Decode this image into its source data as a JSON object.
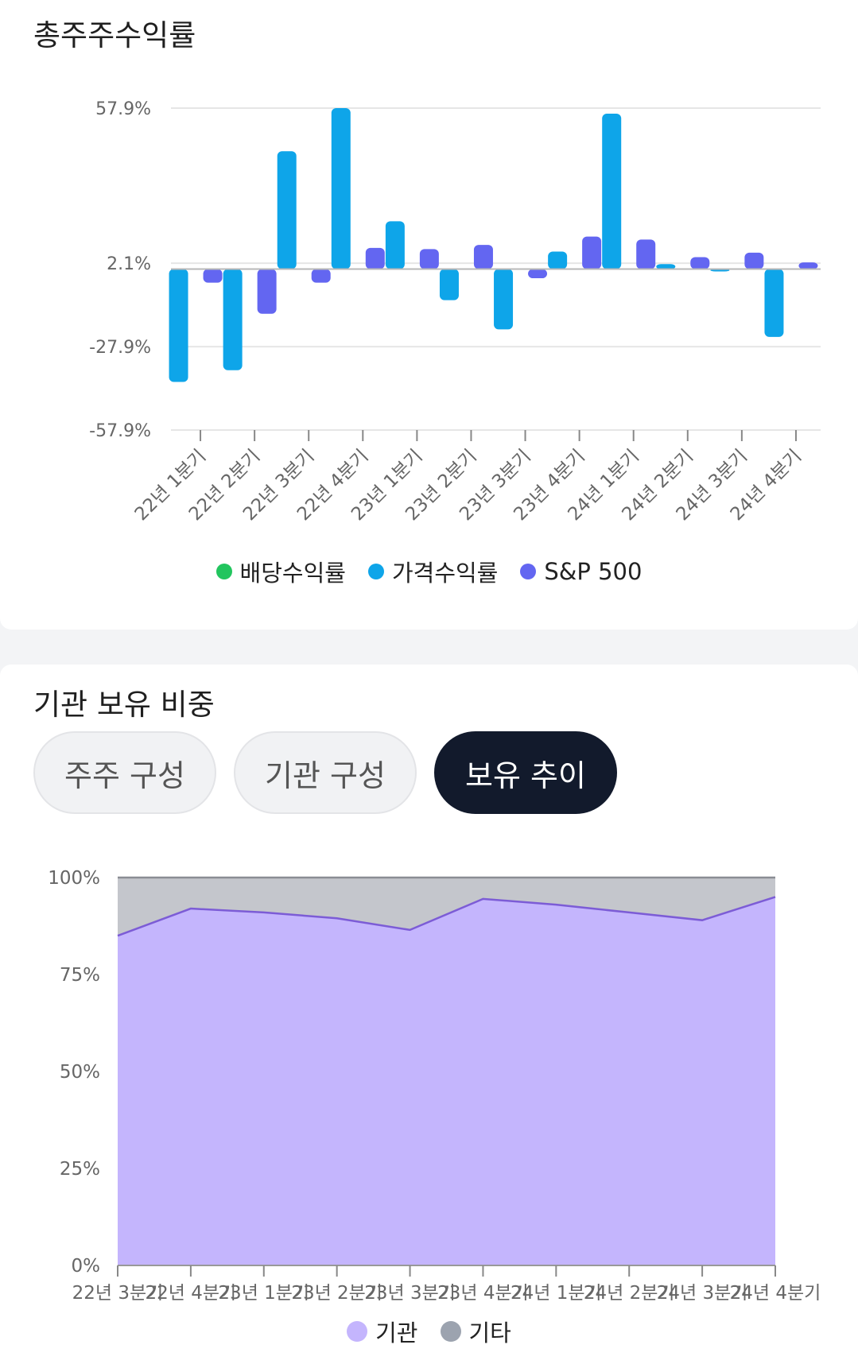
{
  "returns": {
    "title": "총주주수익률",
    "legend": [
      {
        "name": "배당수익률",
        "color": "#22c55e"
      },
      {
        "name": "가격수익률",
        "color": "#0ea5e9"
      },
      {
        "name": "S&P 500",
        "color": "#6366f1"
      }
    ]
  },
  "holdings": {
    "title": "기관 보유 비중",
    "tabs": [
      {
        "label": "주주 구성",
        "active": false
      },
      {
        "label": "기관 구성",
        "active": false
      },
      {
        "label": "보유 추이",
        "active": true
      }
    ],
    "legend": [
      {
        "name": "기관",
        "color": "#c4b5fd"
      },
      {
        "name": "기타",
        "color": "#9ca3af"
      }
    ]
  },
  "chart_data": [
    {
      "type": "bar",
      "title": "총주주수익률",
      "categories": [
        "22년 1분기",
        "22년 2분기",
        "22년 3분기",
        "22년 4분기",
        "23년 1분기",
        "23년 2분기",
        "23년 3분기",
        "23년 4분기",
        "24년 1분기",
        "24년 2분기",
        "24년 3분기",
        "24년 4분기"
      ],
      "yticks": [
        "57.9%",
        "2.1%",
        "-27.9%",
        "-57.9%"
      ],
      "ytick_values": [
        57.9,
        2.1,
        -27.9,
        -57.9
      ],
      "ylim": [
        -57.9,
        57.9
      ],
      "legend_position": "bottom",
      "series": [
        {
          "name": "배당수익률",
          "color": "#22c55e",
          "values": [
            0,
            0,
            0,
            0,
            0,
            0,
            0,
            0,
            0,
            0,
            0,
            0
          ]
        },
        {
          "name": "가격수익률",
          "color": "#0ea5e9",
          "values": [
            -40.6,
            -36.4,
            42.4,
            57.9,
            17.2,
            -11.2,
            -21.7,
            6.3,
            55.9,
            1.8,
            -0.8,
            -24.4
          ]
        },
        {
          "name": "S&P 500",
          "color": "#6366f1",
          "values": [
            -4.9,
            -16.1,
            -4.9,
            7.6,
            7.2,
            8.7,
            -3.3,
            11.7,
            10.6,
            4.3,
            5.9,
            2.4
          ]
        }
      ]
    },
    {
      "type": "area",
      "title": "기관 보유 비중",
      "categories": [
        "22년 3분기",
        "22년 4분기",
        "23년 1분기",
        "23년 2분기",
        "23년 3분기",
        "23년 4분기",
        "24년 1분기",
        "24년 2분기",
        "24년 3분기",
        "24년 4분기"
      ],
      "yticks": [
        "100%",
        "75%",
        "50%",
        "25%",
        "0%"
      ],
      "ytick_values": [
        100,
        75,
        50,
        25,
        0
      ],
      "ylim": [
        0,
        100
      ],
      "legend_position": "bottom",
      "stacked": true,
      "series": [
        {
          "name": "기관",
          "color": "#c4b5fd",
          "line_color": "#7c5cd6",
          "values": [
            85,
            92,
            91,
            89.5,
            86.5,
            94.5,
            93,
            91,
            89,
            95
          ]
        },
        {
          "name": "기타",
          "color": "#c4c6cc",
          "values": [
            15,
            8,
            9,
            10.5,
            13.5,
            5.5,
            7,
            9,
            11,
            5
          ]
        }
      ]
    }
  ]
}
